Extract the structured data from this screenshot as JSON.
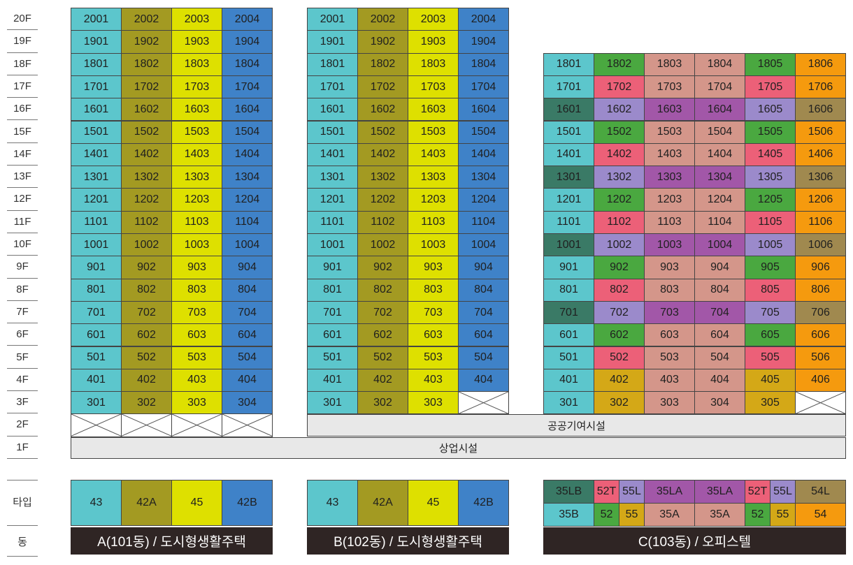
{
  "floors": [
    "20F",
    "19F",
    "18F",
    "17F",
    "16F",
    "15F",
    "14F",
    "13F",
    "12F",
    "11F",
    "10F",
    "9F",
    "8F",
    "7F",
    "6F",
    "5F",
    "4F",
    "3F",
    "2F",
    "1F"
  ],
  "labels": {
    "type": "타입",
    "building": "동"
  },
  "band_2f": "공공기여시설",
  "band_1f": "상업시설",
  "buildings": [
    {
      "name": "A(101동) / 도시형생활주택",
      "top_floor": 20,
      "units": [
        "01",
        "02",
        "03",
        "04"
      ],
      "colors": [
        "#5cc6cc",
        "#a39a22",
        "#dee000",
        "#3f82c8"
      ],
      "empty_3f": [],
      "empty_2f_all": true,
      "types": [
        {
          "label": "43",
          "color": "#5cc6cc"
        },
        {
          "label": "42A",
          "color": "#a39a22"
        },
        {
          "label": "45",
          "color": "#dee000"
        },
        {
          "label": "42B",
          "color": "#3f82c8"
        }
      ]
    },
    {
      "name": "B(102동) / 도시형생활주택",
      "top_floor": 20,
      "units": [
        "01",
        "02",
        "03",
        "04"
      ],
      "colors": [
        "#5cc6cc",
        "#a39a22",
        "#dee000",
        "#3f82c8"
      ],
      "empty_3f": [
        "04"
      ],
      "empty_2f_all": false,
      "types": [
        {
          "label": "43",
          "color": "#5cc6cc"
        },
        {
          "label": "42A",
          "color": "#a39a22"
        },
        {
          "label": "45",
          "color": "#dee000"
        },
        {
          "label": "42B",
          "color": "#3f82c8"
        }
      ]
    },
    {
      "name": "C(103동) / 오피스텔",
      "top_floor": 18,
      "units": [
        "01",
        "02",
        "03",
        "04",
        "05",
        "06"
      ],
      "empty_3f": [
        "06"
      ],
      "color_by_floor": {
        "18": [
          "#5cc6cc",
          "#4aa840",
          "#d4968a",
          "#d4968a",
          "#4aa840",
          "#f59a0e"
        ],
        "17": [
          "#5cc6cc",
          "#ec6078",
          "#d4968a",
          "#d4968a",
          "#ec6078",
          "#f59a0e"
        ],
        "16": [
          "#3a7a66",
          "#9b8acb",
          "#a257a8",
          "#a257a8",
          "#9b8acb",
          "#a0894f"
        ],
        "4": [
          "#5cc6cc",
          "#d4a817",
          "#d4968a",
          "#d4968a",
          "#d4a817",
          "#f59a0e"
        ],
        "3": [
          "#5cc6cc",
          "#d4a817",
          "#d4968a",
          "#d4968a",
          "#d4a817",
          "#ffffff"
        ]
      },
      "types_row1": [
        {
          "label": "35LB",
          "color": "#3a7a66",
          "span": 1
        },
        {
          "label": "52T",
          "color": "#ec6078",
          "span": 0.5
        },
        {
          "label": "55L",
          "color": "#9b8acb",
          "span": 0.5
        },
        {
          "label": "35LA",
          "color": "#a257a8",
          "span": 1
        },
        {
          "label": "35LA",
          "color": "#a257a8",
          "span": 1
        },
        {
          "label": "52T",
          "color": "#ec6078",
          "span": 0.5
        },
        {
          "label": "55L",
          "color": "#9b8acb",
          "span": 0.5
        },
        {
          "label": "54L",
          "color": "#a0894f",
          "span": 1
        }
      ],
      "types_row2": [
        {
          "label": "35B",
          "color": "#5cc6cc",
          "span": 1
        },
        {
          "label": "52",
          "color": "#4aa840",
          "span": 0.5
        },
        {
          "label": "55",
          "color": "#d4a817",
          "span": 0.5
        },
        {
          "label": "35A",
          "color": "#d4968a",
          "span": 1
        },
        {
          "label": "35A",
          "color": "#d4968a",
          "span": 1
        },
        {
          "label": "52",
          "color": "#4aa840",
          "span": 0.5
        },
        {
          "label": "55",
          "color": "#d4a817",
          "span": 0.5
        },
        {
          "label": "54",
          "color": "#f59a0e",
          "span": 1
        }
      ]
    }
  ]
}
